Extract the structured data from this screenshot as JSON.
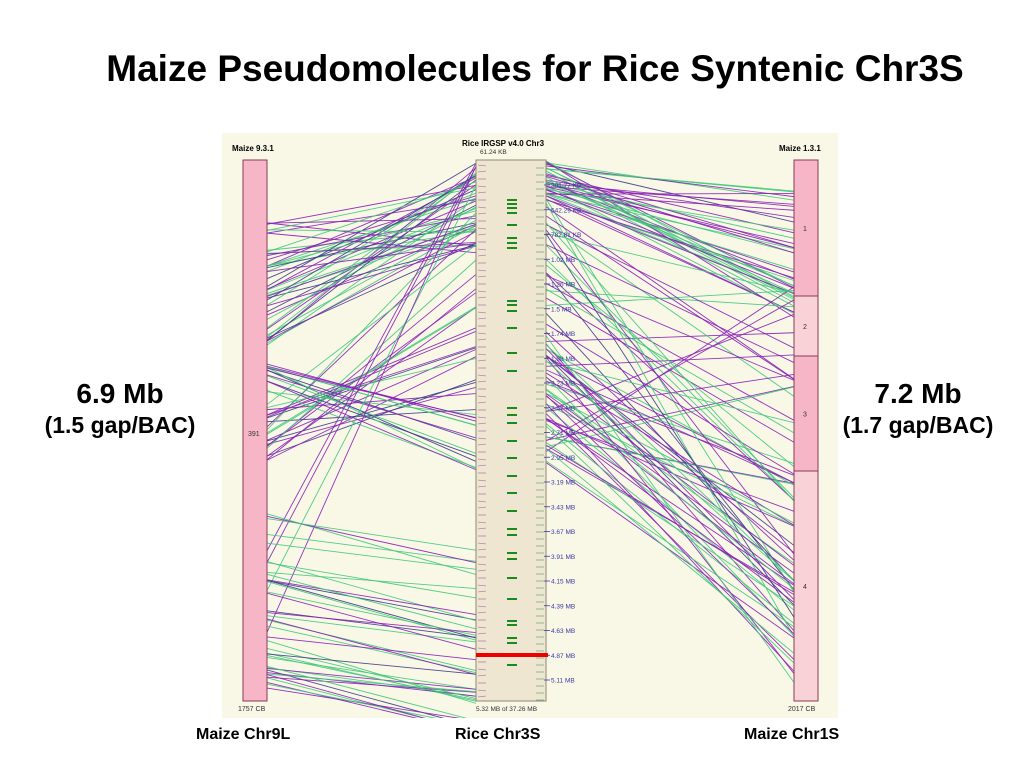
{
  "title": "Maize Pseudomolecules for Rice Syntenic Chr3S",
  "left_stat": {
    "size": "6.9 Mb",
    "gap": "(1.5 gap/BAC)"
  },
  "right_stat": {
    "size": "7.2 Mb",
    "gap": "(1.7 gap/BAC)"
  },
  "bottom_labels": {
    "left": "Maize Chr9L",
    "center": "Rice Chr3S",
    "right": "Maize Chr1S"
  },
  "left_chrom": {
    "header": "Maize 9.3.1",
    "segment_label": "391",
    "footer": "1757 CB",
    "color": "#f7b6c8"
  },
  "center_chrom": {
    "header": "Rice IRGSP v4.0 Chr3",
    "start_label": "61.24 KB",
    "footer": "5.32 MB of 37.26 MB",
    "ticks": [
      "301.77 KB",
      "542.29 KB",
      "782.81 KB",
      "1.02 MB",
      "1.26 MB",
      "1.5 MB",
      "1.74 MB",
      "1.98 MB",
      "2.23 MB",
      "2.47 MB",
      "2.71 MB",
      "2.95 MB",
      "3.19 MB",
      "3.43 MB",
      "3.67 MB",
      "3.91 MB",
      "4.15 MB",
      "4.39 MB",
      "4.63 MB",
      "4.87 MB",
      "5.11 MB"
    ],
    "color": "#efe6d2",
    "highlight_color": "#ee0000",
    "marker_color": "#1a8a1a"
  },
  "right_chrom": {
    "header": "Maize 1.3.1",
    "segments": [
      "1",
      "2",
      "3",
      "4"
    ],
    "footer": "2017 CB",
    "colors": [
      "#f7b6c8",
      "#f9d2d8",
      "#f7b6c8",
      "#f9d2d8"
    ]
  },
  "link_colors": {
    "purple": "#8a1fb8",
    "green": "#3fc97a",
    "navy": "#3a3a8a"
  }
}
